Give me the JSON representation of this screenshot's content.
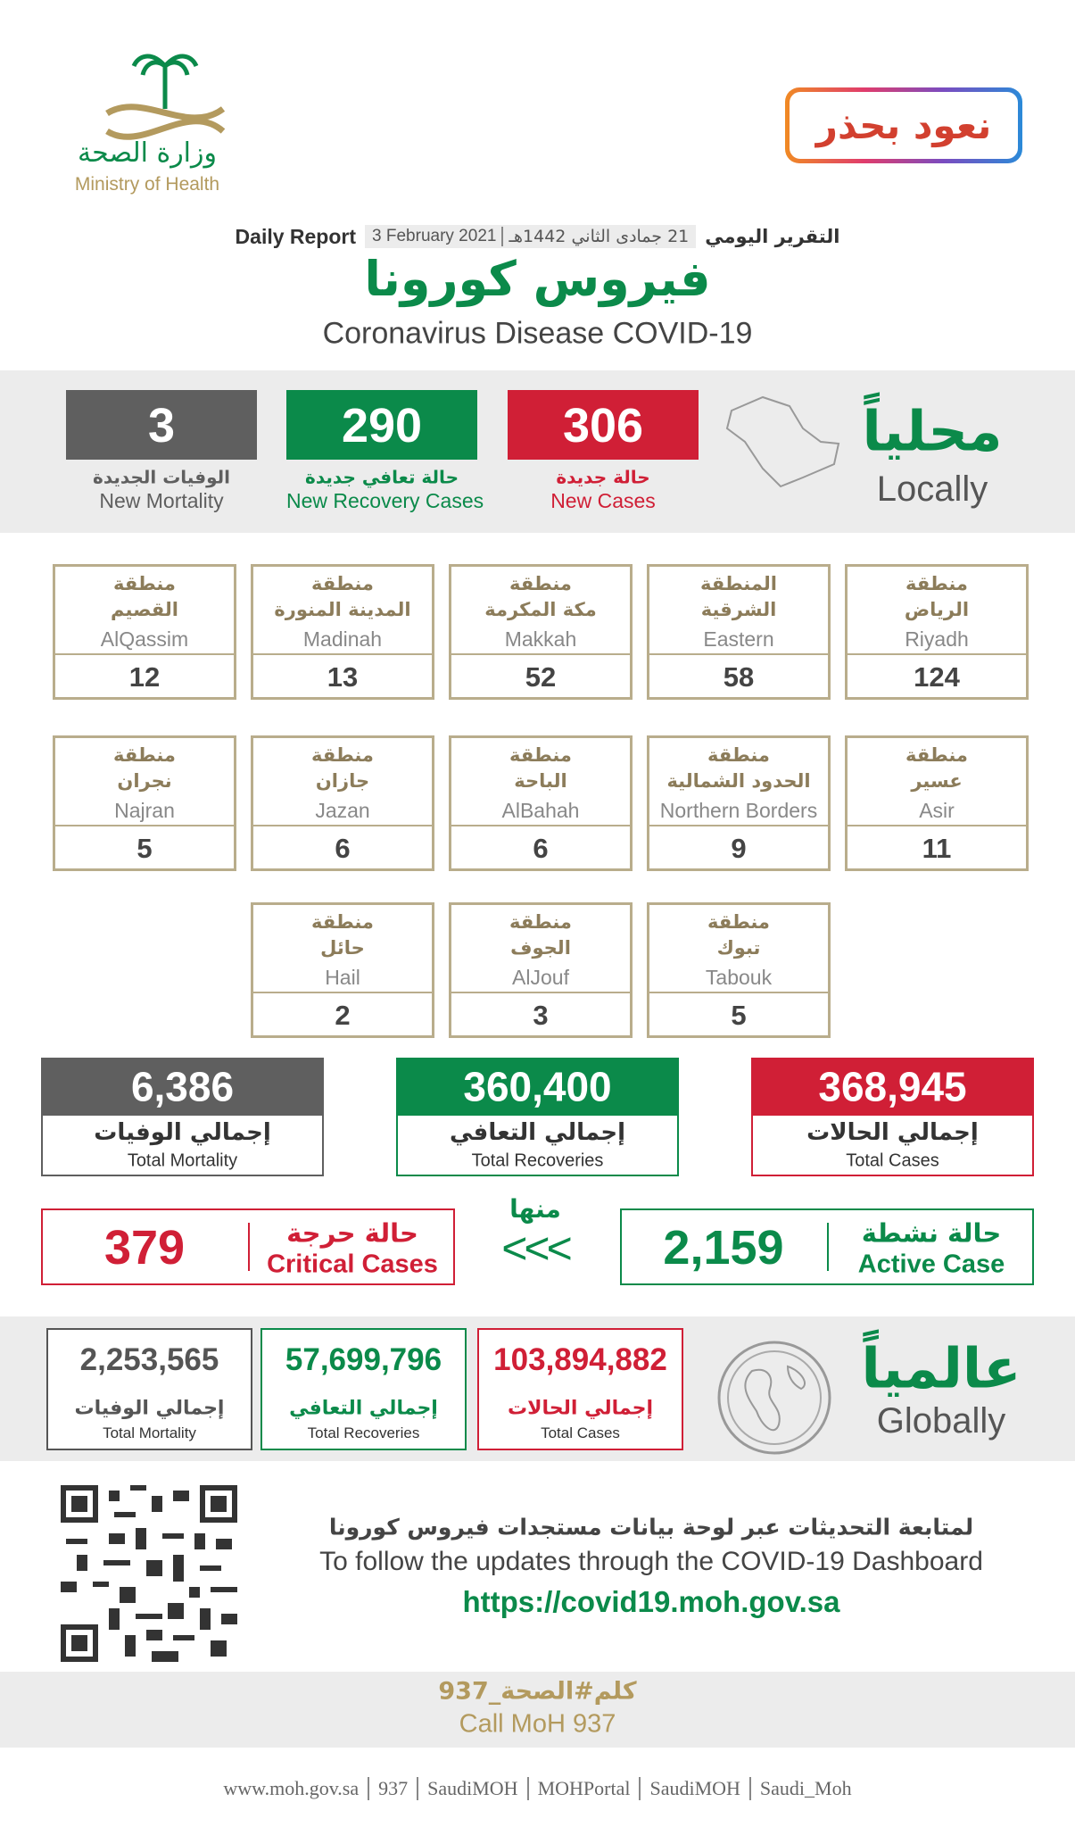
{
  "header": {
    "ministry_ar": "وزارة الصحة",
    "ministry_en": "Ministry of Health",
    "campaign": "نعود بحذر",
    "report_en": "Daily Report",
    "date_gregorian": "3 February 2021",
    "date_hijri": "21 جمادى الثاني 1442هـ",
    "report_ar": "التقرير اليومي",
    "title_ar": "فيروس كورونا",
    "title_en": "Coronavirus Disease COVID-19"
  },
  "local": {
    "title_ar": "محلياً",
    "title_en": "Locally",
    "stats": [
      {
        "value": "306",
        "label_ar": "حالة جديدة",
        "label_en": "New Cases",
        "color": "#d01f36"
      },
      {
        "value": "290",
        "label_ar": "حالة تعافي جديدة",
        "label_en": "New Recovery Cases",
        "color": "#0b8a4a"
      },
      {
        "value": "3",
        "label_ar": "الوفيات الجديدة",
        "label_en": "New Mortality",
        "color": "#5f5f5f"
      }
    ]
  },
  "regions": [
    {
      "prefix": "منطقة",
      "name_ar": "الرياض",
      "name_en": "Riyadh",
      "value": "124"
    },
    {
      "prefix": "المنطقة",
      "name_ar": "الشرقية",
      "name_en": "Eastern",
      "value": "58"
    },
    {
      "prefix": "منطقة",
      "name_ar": "مكة المكرمة",
      "name_en": "Makkah",
      "value": "52"
    },
    {
      "prefix": "منطقة",
      "name_ar": "المدينة المنورة",
      "name_en": "Madinah",
      "value": "13"
    },
    {
      "prefix": "منطقة",
      "name_ar": "القصيم",
      "name_en": "AlQassim",
      "value": "12"
    },
    {
      "prefix": "منطقة",
      "name_ar": "عسير",
      "name_en": "Asir",
      "value": "11"
    },
    {
      "prefix": "منطقة",
      "name_ar": "الحدود الشمالية",
      "name_en": "Northern Borders",
      "value": "9"
    },
    {
      "prefix": "منطقة",
      "name_ar": "الباحة",
      "name_en": "AlBahah",
      "value": "6"
    },
    {
      "prefix": "منطقة",
      "name_ar": "جازان",
      "name_en": "Jazan",
      "value": "6"
    },
    {
      "prefix": "منطقة",
      "name_ar": "نجران",
      "name_en": "Najran",
      "value": "5"
    },
    {
      "prefix": "منطقة",
      "name_ar": "تبوك",
      "name_en": "Tabouk",
      "value": "5"
    },
    {
      "prefix": "منطقة",
      "name_ar": "الجوف",
      "name_en": "AlJouf",
      "value": "3"
    },
    {
      "prefix": "منطقة",
      "name_ar": "حائل",
      "name_en": "Hail",
      "value": "2"
    }
  ],
  "totals": [
    {
      "value": "368,945",
      "label_ar": "إجمالي الحالات",
      "label_en": "Total Cases",
      "color": "#d01f36"
    },
    {
      "value": "360,400",
      "label_ar": "إجمالي التعافي",
      "label_en": "Total Recoveries",
      "color": "#0b8a4a"
    },
    {
      "value": "6,386",
      "label_ar": "إجمالي الوفيات",
      "label_en": "Total Mortality",
      "color": "#5f5f5f"
    }
  ],
  "active": {
    "label_ar": "حالة نشطة",
    "label_en": "Active Case",
    "value": "2,159",
    "color": "#0b8a4a"
  },
  "of_which": "منها",
  "arrows": "<<<",
  "critical": {
    "label_ar": "حالة حرجة",
    "label_en": "Critical Cases",
    "value": "379",
    "color": "#d01f36"
  },
  "global": {
    "title_ar": "عالمياً",
    "title_en": "Globally",
    "stats": [
      {
        "value": "103,894,882",
        "label_ar": "إجمالي الحالات",
        "label_en": "Total Cases",
        "color": "#d01f36"
      },
      {
        "value": "57,699,796",
        "label_ar": "إجمالي التعافي",
        "label_en": "Total Recoveries",
        "color": "#0b8a4a"
      },
      {
        "value": "2,253,565",
        "label_ar": "إجمالي الوفيات",
        "label_en": "Total Mortality",
        "color": "#555555"
      }
    ]
  },
  "dashboard": {
    "text_ar": "لمتابعة التحديثات عبر لوحة بيانات مستجدات فيروس كورونا",
    "text_en": "To follow the updates through the COVID-19 Dashboard",
    "url": "https://covid19.moh.gov.sa"
  },
  "call": {
    "text_ar": "كلم#الصحة_937",
    "text_en": "Call MoH 937"
  },
  "footer": {
    "links": [
      "www.moh.gov.sa",
      "937",
      "SaudiMOH",
      "MOHPortal",
      "SaudiMOH",
      "Saudi_Moh"
    ]
  }
}
